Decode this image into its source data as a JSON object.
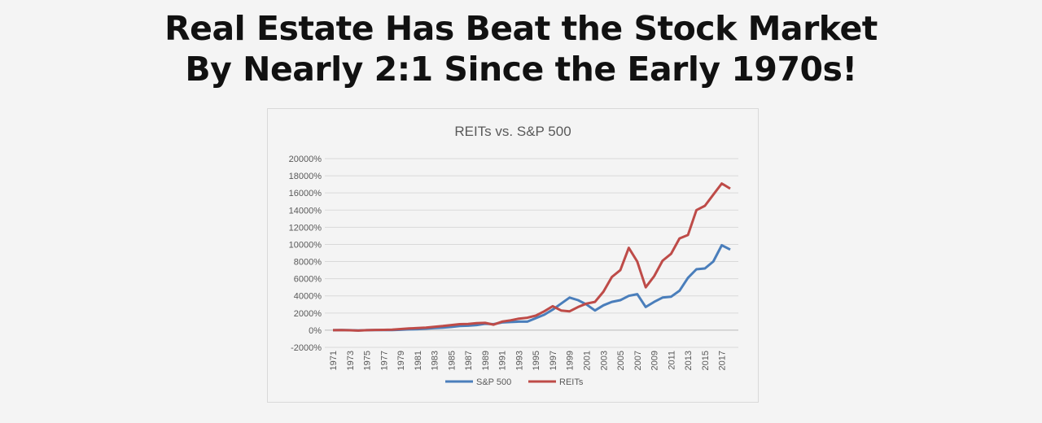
{
  "headline": {
    "line1": "Real Estate Has Beat the Stock Market",
    "line2": "By Nearly 2:1 Since the Early 1970s!"
  },
  "chart_data": {
    "type": "line",
    "title": "REITs vs. S&P 500",
    "xlabel": "",
    "ylabel": "",
    "ylim": [
      -2000,
      20000
    ],
    "y_ticks": [
      -2000,
      0,
      2000,
      4000,
      6000,
      8000,
      10000,
      12000,
      14000,
      16000,
      18000,
      20000
    ],
    "y_tick_suffix": "%",
    "x": [
      1971,
      1972,
      1973,
      1974,
      1975,
      1976,
      1977,
      1978,
      1979,
      1980,
      1981,
      1982,
      1983,
      1984,
      1985,
      1986,
      1987,
      1988,
      1989,
      1990,
      1991,
      1992,
      1993,
      1994,
      1995,
      1996,
      1997,
      1998,
      1999,
      2000,
      2001,
      2002,
      2003,
      2004,
      2005,
      2006,
      2007,
      2008,
      2009,
      2010,
      2011,
      2012,
      2013,
      2014,
      2015,
      2016,
      2017,
      2018
    ],
    "x_tick_labels": [
      "1971",
      "1973",
      "1975",
      "1977",
      "1979",
      "1981",
      "1983",
      "1985",
      "1987",
      "1989",
      "1991",
      "1993",
      "1995",
      "1997",
      "1999",
      "2001",
      "2003",
      "2005",
      "2007",
      "2009",
      "2011",
      "2013",
      "2015",
      "2017"
    ],
    "grid": true,
    "legend": "bottom",
    "series": [
      {
        "name": "S&P 500",
        "color": "#4a7ebb",
        "values": [
          0,
          10,
          0,
          -30,
          0,
          20,
          10,
          20,
          50,
          100,
          120,
          180,
          250,
          300,
          380,
          480,
          520,
          600,
          750,
          700,
          900,
          950,
          1000,
          1000,
          1400,
          1800,
          2400,
          3100,
          3800,
          3500,
          3000,
          2300,
          2900,
          3300,
          3500,
          4000,
          4200,
          2700,
          3300,
          3800,
          3900,
          4600,
          6100,
          7100,
          7200,
          8000,
          9900,
          9400
        ]
      },
      {
        "name": "REITs",
        "color": "#be4b48",
        "values": [
          0,
          20,
          -10,
          -50,
          0,
          30,
          40,
          60,
          130,
          200,
          250,
          300,
          400,
          480,
          600,
          700,
          720,
          830,
          850,
          650,
          1000,
          1150,
          1350,
          1450,
          1700,
          2200,
          2800,
          2300,
          2200,
          2700,
          3100,
          3300,
          4500,
          6200,
          7000,
          9600,
          8000,
          5000,
          6300,
          8100,
          8900,
          10700,
          11100,
          14000,
          14500,
          15800,
          17100,
          16500
        ]
      }
    ]
  }
}
